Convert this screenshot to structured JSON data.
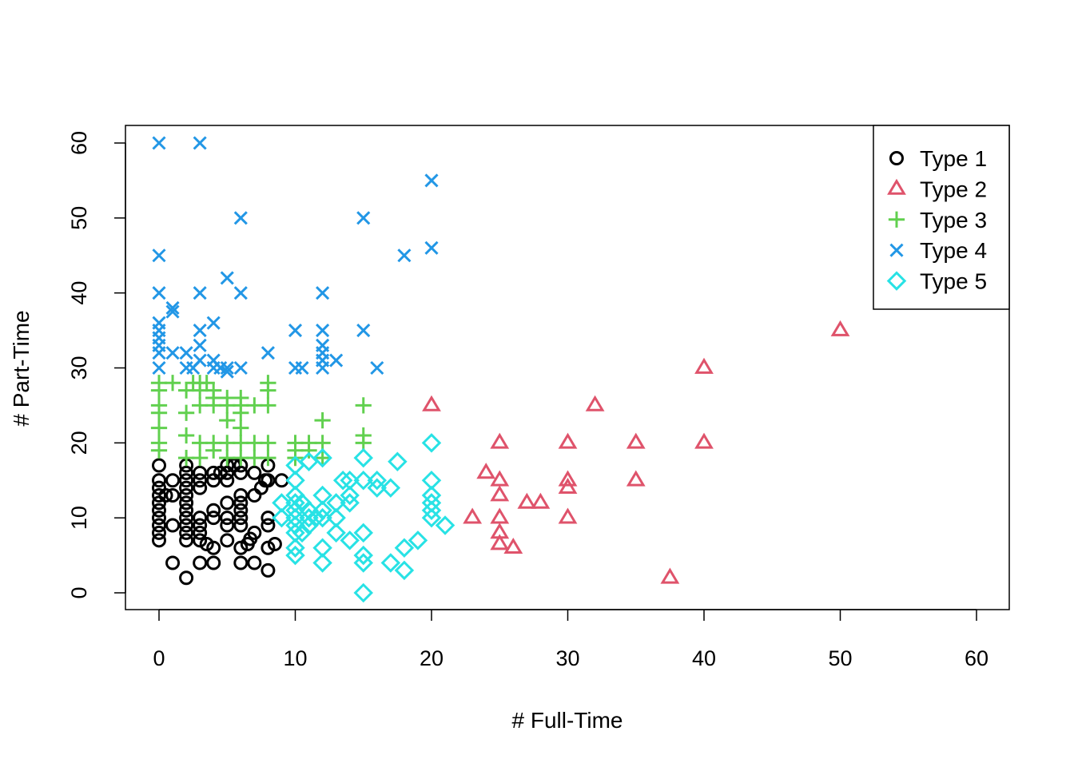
{
  "chart_data": {
    "type": "scatter",
    "title": "",
    "xlabel": "# Full-Time",
    "ylabel": "# Part-Time",
    "xlim": [
      0,
      60
    ],
    "ylim": [
      0,
      60
    ],
    "xticks": [
      0,
      10,
      20,
      30,
      40,
      50,
      60
    ],
    "yticks": [
      0,
      10,
      20,
      30,
      40,
      50,
      60
    ],
    "grid": false,
    "legend_position": "top-right",
    "series": [
      {
        "name": "Type 1",
        "marker": "circle",
        "color": "#000000",
        "points": [
          [
            0,
            7
          ],
          [
            0,
            8
          ],
          [
            0,
            9
          ],
          [
            0,
            10
          ],
          [
            0,
            11
          ],
          [
            0,
            12
          ],
          [
            0,
            13
          ],
          [
            0,
            14
          ],
          [
            0,
            15
          ],
          [
            0,
            17
          ],
          [
            0.5,
            13
          ],
          [
            1,
            9
          ],
          [
            1,
            13
          ],
          [
            1,
            15
          ],
          [
            1,
            4
          ],
          [
            2,
            2
          ],
          [
            2,
            7
          ],
          [
            2,
            8
          ],
          [
            2,
            9
          ],
          [
            2,
            10
          ],
          [
            2,
            11
          ],
          [
            2,
            12
          ],
          [
            2,
            13
          ],
          [
            2,
            14
          ],
          [
            2,
            15
          ],
          [
            2,
            16
          ],
          [
            2,
            17
          ],
          [
            3,
            4
          ],
          [
            3,
            7
          ],
          [
            3,
            8
          ],
          [
            3,
            9
          ],
          [
            3,
            10
          ],
          [
            3,
            14
          ],
          [
            3,
            15
          ],
          [
            3,
            16
          ],
          [
            3.5,
            6.5
          ],
          [
            4,
            4
          ],
          [
            4,
            6
          ],
          [
            4,
            10
          ],
          [
            4,
            11
          ],
          [
            4,
            15
          ],
          [
            4,
            16
          ],
          [
            4.5,
            16
          ],
          [
            5,
            7
          ],
          [
            5,
            9
          ],
          [
            5,
            10
          ],
          [
            5,
            12
          ],
          [
            5,
            15
          ],
          [
            5,
            16
          ],
          [
            5,
            17
          ],
          [
            5.5,
            17
          ],
          [
            6,
            4
          ],
          [
            6,
            6
          ],
          [
            6,
            9
          ],
          [
            6,
            10
          ],
          [
            6,
            11
          ],
          [
            6,
            12
          ],
          [
            6,
            13
          ],
          [
            6,
            16
          ],
          [
            6,
            17
          ],
          [
            6.5,
            6.5
          ],
          [
            6.7,
            7.2
          ],
          [
            7,
            4
          ],
          [
            7,
            8
          ],
          [
            7,
            13
          ],
          [
            7,
            16
          ],
          [
            7.5,
            14
          ],
          [
            7.8,
            15
          ],
          [
            8,
            3
          ],
          [
            8,
            6
          ],
          [
            8,
            9
          ],
          [
            8,
            10
          ],
          [
            8,
            15
          ],
          [
            8,
            17
          ],
          [
            8.5,
            6.5
          ],
          [
            9,
            15
          ]
        ]
      },
      {
        "name": "Type 2",
        "marker": "triangle",
        "color": "#DF536B",
        "points": [
          [
            20,
            25
          ],
          [
            23,
            10
          ],
          [
            24,
            16
          ],
          [
            25,
            6.5
          ],
          [
            25,
            8
          ],
          [
            25,
            10
          ],
          [
            25,
            13
          ],
          [
            25,
            15
          ],
          [
            25,
            20
          ],
          [
            26,
            6
          ],
          [
            27,
            12
          ],
          [
            28,
            12
          ],
          [
            30,
            10
          ],
          [
            30,
            14
          ],
          [
            30,
            15
          ],
          [
            30,
            20
          ],
          [
            32,
            25
          ],
          [
            35,
            15
          ],
          [
            35,
            20
          ],
          [
            37.5,
            2
          ],
          [
            40,
            20
          ],
          [
            40,
            30
          ],
          [
            50,
            35
          ]
        ]
      },
      {
        "name": "Type 3",
        "marker": "plus",
        "color": "#61D04F",
        "points": [
          [
            0,
            19
          ],
          [
            0,
            20
          ],
          [
            0,
            22
          ],
          [
            0,
            24
          ],
          [
            0,
            25
          ],
          [
            0,
            27
          ],
          [
            0,
            28
          ],
          [
            1,
            28
          ],
          [
            2,
            18
          ],
          [
            2,
            21
          ],
          [
            2,
            24
          ],
          [
            2,
            27
          ],
          [
            2.5,
            28
          ],
          [
            3,
            18
          ],
          [
            3,
            20
          ],
          [
            3,
            25
          ],
          [
            3,
            27
          ],
          [
            3,
            28
          ],
          [
            3.5,
            28
          ],
          [
            4,
            19
          ],
          [
            4,
            20
          ],
          [
            4,
            25
          ],
          [
            4,
            26
          ],
          [
            4,
            27
          ],
          [
            5,
            18
          ],
          [
            5,
            20
          ],
          [
            5,
            23
          ],
          [
            5,
            25
          ],
          [
            5,
            26
          ],
          [
            6,
            18
          ],
          [
            6,
            20
          ],
          [
            6,
            22
          ],
          [
            6,
            24
          ],
          [
            6,
            25
          ],
          [
            6,
            26
          ],
          [
            7,
            18
          ],
          [
            7,
            20
          ],
          [
            7,
            25
          ],
          [
            8,
            18
          ],
          [
            8,
            20
          ],
          [
            8,
            25
          ],
          [
            8,
            27
          ],
          [
            8,
            28
          ],
          [
            10,
            18
          ],
          [
            10,
            19
          ],
          [
            10,
            20
          ],
          [
            11,
            19
          ],
          [
            11,
            20
          ],
          [
            12,
            18
          ],
          [
            12,
            20
          ],
          [
            12,
            23
          ],
          [
            15,
            20
          ],
          [
            15,
            21
          ],
          [
            15,
            25
          ]
        ]
      },
      {
        "name": "Type 4",
        "marker": "cross",
        "color": "#2297E6",
        "points": [
          [
            0,
            30
          ],
          [
            0,
            32
          ],
          [
            0,
            33
          ],
          [
            0,
            34
          ],
          [
            0,
            35
          ],
          [
            0,
            36
          ],
          [
            0,
            40
          ],
          [
            0,
            45
          ],
          [
            0,
            60
          ],
          [
            1,
            32
          ],
          [
            1,
            37.5
          ],
          [
            1,
            38
          ],
          [
            2,
            30
          ],
          [
            2,
            32
          ],
          [
            2.5,
            30
          ],
          [
            3,
            31
          ],
          [
            3,
            33
          ],
          [
            3,
            35
          ],
          [
            3,
            40
          ],
          [
            3,
            60
          ],
          [
            4,
            30
          ],
          [
            4,
            31
          ],
          [
            4,
            36
          ],
          [
            4.5,
            30
          ],
          [
            5,
            29.5
          ],
          [
            5,
            30
          ],
          [
            5,
            42
          ],
          [
            6,
            30
          ],
          [
            6,
            40
          ],
          [
            6,
            50
          ],
          [
            8,
            32
          ],
          [
            10,
            30
          ],
          [
            10,
            35
          ],
          [
            10.5,
            30
          ],
          [
            12,
            30
          ],
          [
            12,
            31
          ],
          [
            12,
            32
          ],
          [
            12,
            33
          ],
          [
            12,
            35
          ],
          [
            12,
            40
          ],
          [
            13,
            31
          ],
          [
            15,
            35
          ],
          [
            15,
            50
          ],
          [
            16,
            30
          ],
          [
            18,
            45
          ],
          [
            20,
            46
          ],
          [
            20,
            55
          ]
        ]
      },
      {
        "name": "Type 5",
        "marker": "diamond",
        "color": "#28E2E5",
        "points": [
          [
            9,
            10
          ],
          [
            9,
            12
          ],
          [
            10,
            5
          ],
          [
            10,
            6
          ],
          [
            10,
            8
          ],
          [
            10,
            9
          ],
          [
            10,
            10
          ],
          [
            10,
            11
          ],
          [
            10,
            12
          ],
          [
            10,
            13
          ],
          [
            10,
            15
          ],
          [
            10,
            17
          ],
          [
            10.5,
            8
          ],
          [
            10.5,
            12
          ],
          [
            11,
            9
          ],
          [
            11,
            10
          ],
          [
            11,
            11
          ],
          [
            11,
            17.5
          ],
          [
            11.5,
            10
          ],
          [
            12,
            4
          ],
          [
            12,
            6
          ],
          [
            12,
            10
          ],
          [
            12,
            11
          ],
          [
            12,
            13
          ],
          [
            12,
            18
          ],
          [
            13,
            8
          ],
          [
            13,
            10
          ],
          [
            13,
            12
          ],
          [
            13.5,
            15
          ],
          [
            14,
            7
          ],
          [
            14,
            12
          ],
          [
            14,
            13
          ],
          [
            14,
            15
          ],
          [
            15,
            0
          ],
          [
            15,
            4
          ],
          [
            15,
            5
          ],
          [
            15,
            8
          ],
          [
            15,
            15
          ],
          [
            15,
            18
          ],
          [
            16,
            14
          ],
          [
            16,
            15
          ],
          [
            17,
            4
          ],
          [
            17,
            14
          ],
          [
            17.5,
            17.5
          ],
          [
            18,
            3
          ],
          [
            18,
            6
          ],
          [
            19,
            7
          ],
          [
            20,
            10
          ],
          [
            20,
            11
          ],
          [
            20,
            12
          ],
          [
            20,
            13
          ],
          [
            20,
            15
          ],
          [
            20,
            20
          ],
          [
            21,
            9
          ]
        ]
      }
    ]
  }
}
